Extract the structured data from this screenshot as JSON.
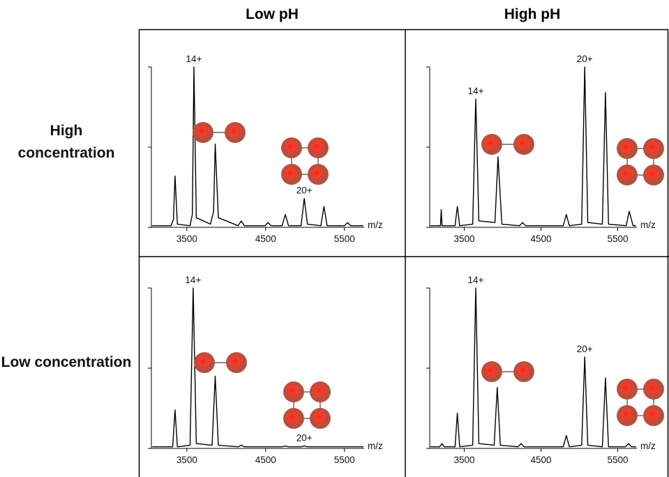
{
  "column_headers": [
    "Low pH",
    "High pH"
  ],
  "row_headers": [
    "High concentration",
    "Low concentration"
  ],
  "chart_data": [
    {
      "type": "line",
      "x_label": "m/z",
      "xlim": [
        3050,
        5750
      ],
      "xticks": [
        3500,
        4500,
        5500
      ],
      "ylim": [
        0,
        100
      ],
      "yticks": [
        0,
        50,
        100
      ],
      "color": "#000000",
      "annotations": [
        "14+",
        "20+"
      ],
      "x": [
        3060,
        3300,
        3330,
        3350,
        3380,
        3540,
        3570,
        3590,
        3620,
        3800,
        3840,
        3860,
        3900,
        4150,
        4190,
        4230,
        4490,
        4530,
        4570,
        4710,
        4750,
        4790,
        4950,
        4990,
        5030,
        5200,
        5240,
        5280,
        5500,
        5540,
        5580,
        5740
      ],
      "values": [
        1,
        1,
        5,
        32,
        2,
        1,
        8,
        100,
        6,
        2,
        10,
        52,
        6,
        1,
        4,
        1,
        1,
        3,
        1,
        1,
        8,
        1,
        1,
        18,
        2,
        1,
        13,
        1,
        1,
        3,
        1,
        1
      ]
    },
    {
      "type": "line",
      "x_label": "m/z",
      "xlim": [
        3050,
        5750
      ],
      "xticks": [
        3500,
        4500,
        5500
      ],
      "ylim": [
        0,
        100
      ],
      "yticks": [
        0,
        50,
        100
      ],
      "color": "#000000",
      "annotations": [
        "14+",
        "20+"
      ],
      "x": [
        3060,
        3190,
        3200,
        3210,
        3380,
        3410,
        3440,
        3610,
        3650,
        3690,
        3900,
        3940,
        3990,
        4220,
        4260,
        4300,
        4790,
        4830,
        4870,
        5030,
        5070,
        5110,
        5300,
        5340,
        5380,
        5610,
        5650,
        5700,
        5740
      ],
      "values": [
        1,
        1,
        11,
        1,
        1,
        13,
        1,
        2,
        80,
        4,
        3,
        44,
        2,
        1,
        3,
        1,
        1,
        8,
        1,
        2,
        100,
        3,
        2,
        84,
        2,
        1,
        10,
        1,
        1
      ]
    },
    {
      "type": "line",
      "x_label": "m/z",
      "xlim": [
        3050,
        5750
      ],
      "xticks": [
        3500,
        4500,
        5500
      ],
      "ylim": [
        0,
        100
      ],
      "yticks": [
        0,
        50,
        100
      ],
      "color": "#000000",
      "annotations": [
        "14+",
        "20+"
      ],
      "x": [
        3060,
        3320,
        3350,
        3380,
        3540,
        3580,
        3620,
        3820,
        3860,
        3900,
        4150,
        4190,
        4230,
        4710,
        4750,
        4790,
        4950,
        4990,
        5030,
        5740
      ],
      "values": [
        1,
        1,
        24,
        1,
        2,
        100,
        3,
        2,
        45,
        2,
        1,
        2,
        1,
        1,
        1.5,
        1,
        1,
        1.5,
        1,
        1
      ]
    },
    {
      "type": "line",
      "x_label": "m/z",
      "xlim": [
        3050,
        5750
      ],
      "xticks": [
        3500,
        4500,
        5500
      ],
      "ylim": [
        0,
        100
      ],
      "yticks": [
        0,
        50,
        100
      ],
      "color": "#000000",
      "annotations": [
        "14+",
        "20+"
      ],
      "x": [
        3060,
        3180,
        3210,
        3240,
        3380,
        3410,
        3440,
        3610,
        3650,
        3690,
        3890,
        3930,
        3970,
        4200,
        4240,
        4280,
        4790,
        4830,
        4870,
        5030,
        5070,
        5110,
        5300,
        5340,
        5380,
        5600,
        5640,
        5680,
        5740
      ],
      "values": [
        1,
        1,
        3,
        1,
        1,
        22,
        1,
        2,
        100,
        3,
        2,
        38,
        2,
        1,
        3,
        1,
        1,
        8,
        1,
        2,
        57,
        2,
        1,
        44,
        1,
        1,
        3,
        1,
        1
      ]
    }
  ]
}
